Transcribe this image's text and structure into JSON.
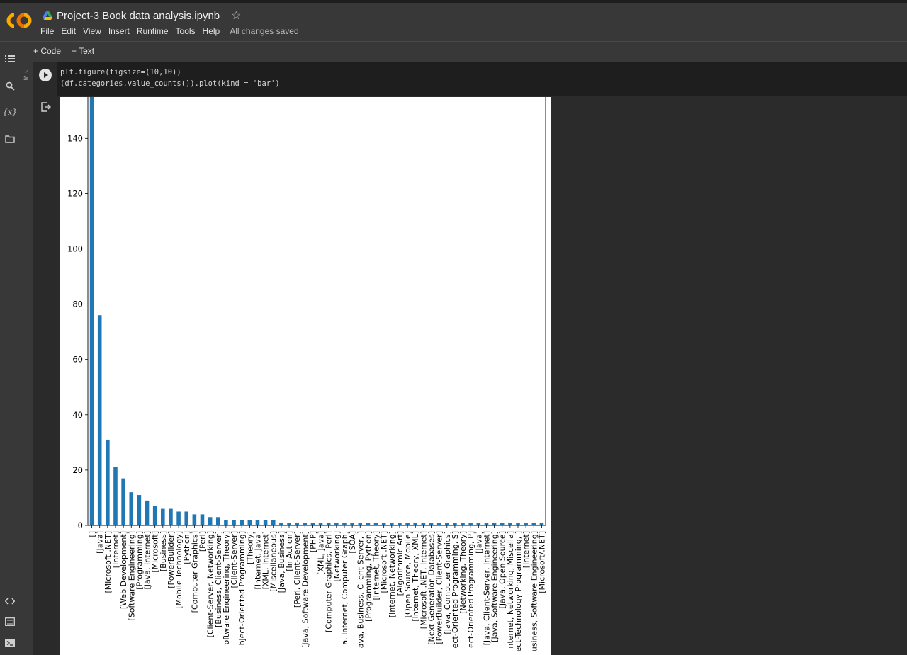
{
  "header": {
    "title": "Project-3 Book data analysis.ipynb",
    "menu": [
      "File",
      "Edit",
      "View",
      "Insert",
      "Runtime",
      "Tools",
      "Help"
    ],
    "saved_status": "All changes saved",
    "icons": [
      "colab-logo",
      "drive-icon",
      "star-icon"
    ]
  },
  "toolbar": {
    "code_label": "+ Code",
    "text_label": "+ Text"
  },
  "sidebar": {
    "icons": [
      "toc-icon",
      "search-icon",
      "variables-icon",
      "files-icon",
      "code-snippets-icon",
      "command-palette-icon",
      "terminal-icon"
    ],
    "variables_glyph": "{x}"
  },
  "cell": {
    "exec_time": "1s",
    "code_lines": [
      "plt.figure(figsize=(10,10))",
      "(df.categories.value_counts()).plot(kind = 'bar')"
    ]
  },
  "colors": {
    "bar": "#1f77b4",
    "background": "#383838",
    "code_bg": "#1e1e1e"
  },
  "chart_data": {
    "type": "bar",
    "y_ticks": [
      0,
      20,
      40,
      60,
      80,
      100,
      120,
      140
    ],
    "ylim": [
      0,
      158
    ],
    "bar_color": "#1f77b4",
    "categories": [
      "[]",
      "[Java]",
      "[Microsoft .NET]",
      "[Internet]",
      "[Web Development]",
      "[Software Engineering]",
      "[Programming]",
      "[Java, Internet]",
      "[Microsoft]",
      "[Business]",
      "[PowerBuilder]",
      "[Mobile Technology]",
      "[Python]",
      "[Computer Graphics]",
      "[Perl]",
      "[Client-Server, Networking]",
      "[Business, Client-Server]",
      "oftware Engineering, Theory]",
      "[Client-Server]",
      "bject-Oriented Programming]",
      "[Theory]",
      "[Internet, Java]",
      "[XML, Internet]",
      "[Miscellaneous]",
      "[Java, Business]",
      "[In Action]",
      "[Perl, Client-Server]",
      "[Java, Software Development]",
      "[PHP]",
      "[XML, Java]",
      "[Computer Graphics, Perl]",
      "[Networking]",
      "a, Internet, Computer Graph]",
      "[SOA]",
      "ava, Business, Client Server, ]",
      "[Programming, Python]",
      "[Internet, Theory]",
      "[Microsoft .NET]",
      "[Internet, Networking]",
      "[Algorithmic Art]",
      "[Open Source, Mobile]",
      "[Internet, Theory, XML]",
      "[Microsoft .NET, Internet]",
      "[Next Generation Databases]",
      "[PowerBuilder, Client-Server]",
      "[Java, Computer Graphics]",
      "ect-Oriented Programming, S]",
      "[Networking, Theory]",
      "ect-Oriented Programming, P]",
      "[Java]",
      "[Java, Client-Server, Internet]",
      "[Java, Software Engineering]",
      "[Java, Open Source]",
      "nternet, Networking, Miscella]",
      "ect-Technology Programming, ]",
      "[Internet]",
      "usiness, Software Engineering]",
      "[Microsoft/.NET]"
    ],
    "values": [
      158,
      76,
      31,
      21,
      17,
      12,
      11,
      9,
      7,
      6,
      6,
      5,
      5,
      4,
      4,
      3,
      3,
      2,
      2,
      2,
      2,
      2,
      2,
      2,
      1,
      1,
      1,
      1,
      1,
      1,
      1,
      1,
      1,
      1,
      1,
      1,
      1,
      1,
      1,
      1,
      1,
      1,
      1,
      1,
      1,
      1,
      1,
      1,
      1,
      1,
      1,
      1,
      1,
      1,
      1,
      1,
      1,
      1
    ],
    "xlabel": "",
    "ylabel": ""
  }
}
